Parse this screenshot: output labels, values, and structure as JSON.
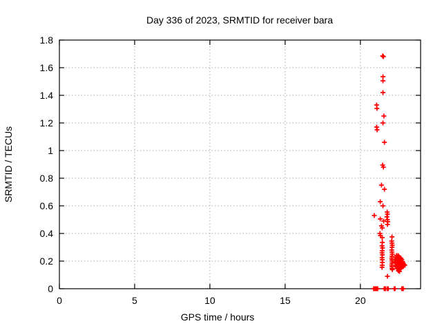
{
  "chart_data": {
    "type": "scatter",
    "title": "Day 336 of 2023, SRMTID for receiver bara",
    "xlabel": "GPS time / hours",
    "ylabel": "SRMTID / TECUs",
    "xlim": [
      0,
      24
    ],
    "ylim": [
      0,
      1.8
    ],
    "xticks": [
      0,
      5,
      10,
      15,
      20
    ],
    "yticks": [
      0,
      0.2,
      0.4,
      0.6,
      0.8,
      1,
      1.2,
      1.4,
      1.6,
      1.8
    ],
    "grid": true,
    "legend": "none",
    "marker": "plus",
    "marker_color": "#ff0000",
    "grid_color": "#a8a8a8",
    "border_color": "#000000",
    "series": [
      {
        "name": "SRMTID",
        "points": [
          [
            21.48,
            1.685
          ],
          [
            21.53,
            1.68
          ],
          [
            21.5,
            1.535
          ],
          [
            21.5,
            1.505
          ],
          [
            21.5,
            1.42
          ],
          [
            21.08,
            1.33
          ],
          [
            21.1,
            1.305
          ],
          [
            21.56,
            1.25
          ],
          [
            21.5,
            1.2
          ],
          [
            21.08,
            1.17
          ],
          [
            21.11,
            1.15
          ],
          [
            21.6,
            1.06
          ],
          [
            21.48,
            0.895
          ],
          [
            21.53,
            0.88
          ],
          [
            21.4,
            0.75
          ],
          [
            21.6,
            0.72
          ],
          [
            21.32,
            0.63
          ],
          [
            21.5,
            0.6
          ],
          [
            20.92,
            0.53
          ],
          [
            21.32,
            0.505
          ],
          [
            21.55,
            0.49
          ],
          [
            21.4,
            0.455
          ],
          [
            21.45,
            0.44
          ],
          [
            21.3,
            0.4
          ],
          [
            21.33,
            0.385
          ],
          [
            21.78,
            0.555
          ],
          [
            21.8,
            0.54
          ],
          [
            21.76,
            0.52
          ],
          [
            21.8,
            0.5
          ],
          [
            21.82,
            0.485
          ],
          [
            21.8,
            0.465
          ],
          [
            21.45,
            0.37
          ],
          [
            21.46,
            0.335
          ],
          [
            21.44,
            0.31
          ],
          [
            21.47,
            0.295
          ],
          [
            21.45,
            0.275
          ],
          [
            21.44,
            0.26
          ],
          [
            21.46,
            0.245
          ],
          [
            21.44,
            0.225
          ],
          [
            21.45,
            0.21
          ],
          [
            21.46,
            0.19
          ],
          [
            21.45,
            0.17
          ],
          [
            21.44,
            0.155
          ],
          [
            21.8,
            0.09
          ],
          [
            22.1,
            0.375
          ],
          [
            22.08,
            0.345
          ],
          [
            22.1,
            0.33
          ],
          [
            22.12,
            0.315
          ],
          [
            22.1,
            0.3
          ],
          [
            22.08,
            0.28
          ],
          [
            22.1,
            0.265
          ],
          [
            22.12,
            0.25
          ],
          [
            22.1,
            0.235
          ],
          [
            22.08,
            0.222
          ],
          [
            22.1,
            0.21
          ],
          [
            22.12,
            0.198
          ],
          [
            22.1,
            0.185
          ],
          [
            22.08,
            0.172
          ],
          [
            22.1,
            0.16
          ],
          [
            22.1,
            0.147
          ],
          [
            22.12,
            0.138
          ],
          [
            22.3,
            0.21
          ],
          [
            22.32,
            0.19
          ],
          [
            22.35,
            0.225
          ],
          [
            22.35,
            0.17
          ],
          [
            22.38,
            0.2
          ],
          [
            22.4,
            0.24
          ],
          [
            22.4,
            0.21
          ],
          [
            22.4,
            0.185
          ],
          [
            22.4,
            0.16
          ],
          [
            22.43,
            0.145
          ],
          [
            22.45,
            0.23
          ],
          [
            22.45,
            0.205
          ],
          [
            22.45,
            0.18
          ],
          [
            22.45,
            0.155
          ],
          [
            22.48,
            0.22
          ],
          [
            22.5,
            0.24
          ],
          [
            22.5,
            0.21
          ],
          [
            22.5,
            0.19
          ],
          [
            22.5,
            0.17
          ],
          [
            22.5,
            0.15
          ],
          [
            22.52,
            0.13
          ],
          [
            22.55,
            0.235
          ],
          [
            22.55,
            0.21
          ],
          [
            22.55,
            0.19
          ],
          [
            22.55,
            0.165
          ],
          [
            22.55,
            0.14
          ],
          [
            22.58,
            0.18
          ],
          [
            22.6,
            0.225
          ],
          [
            22.6,
            0.2
          ],
          [
            22.6,
            0.18
          ],
          [
            22.6,
            0.155
          ],
          [
            22.6,
            0.125
          ],
          [
            22.63,
            0.17
          ],
          [
            22.65,
            0.215
          ],
          [
            22.65,
            0.19
          ],
          [
            22.65,
            0.165
          ],
          [
            22.65,
            0.145
          ],
          [
            22.68,
            0.18
          ],
          [
            22.7,
            0.22
          ],
          [
            22.7,
            0.195
          ],
          [
            22.7,
            0.17
          ],
          [
            22.7,
            0.15
          ],
          [
            22.73,
            0.185
          ],
          [
            22.75,
            0.21
          ],
          [
            22.75,
            0.18
          ],
          [
            22.75,
            0.155
          ],
          [
            22.78,
            0.17
          ],
          [
            22.8,
            0.195
          ],
          [
            22.8,
            0.165
          ],
          [
            22.85,
            0.185
          ],
          [
            22.85,
            0.16
          ],
          [
            22.9,
            0.175
          ],
          [
            22.95,
            0.17
          ],
          [
            20.88,
            0
          ],
          [
            20.93,
            0
          ],
          [
            21.0,
            0
          ],
          [
            21.05,
            0
          ],
          [
            21.1,
            0
          ],
          [
            21.15,
            0
          ],
          [
            21.58,
            0
          ],
          [
            21.63,
            0
          ],
          [
            21.68,
            0
          ],
          [
            21.8,
            0
          ],
          [
            21.85,
            0
          ],
          [
            22.25,
            0
          ],
          [
            22.3,
            0
          ],
          [
            22.75,
            0
          ],
          [
            22.8,
            0
          ],
          [
            22.85,
            0
          ]
        ]
      }
    ]
  }
}
